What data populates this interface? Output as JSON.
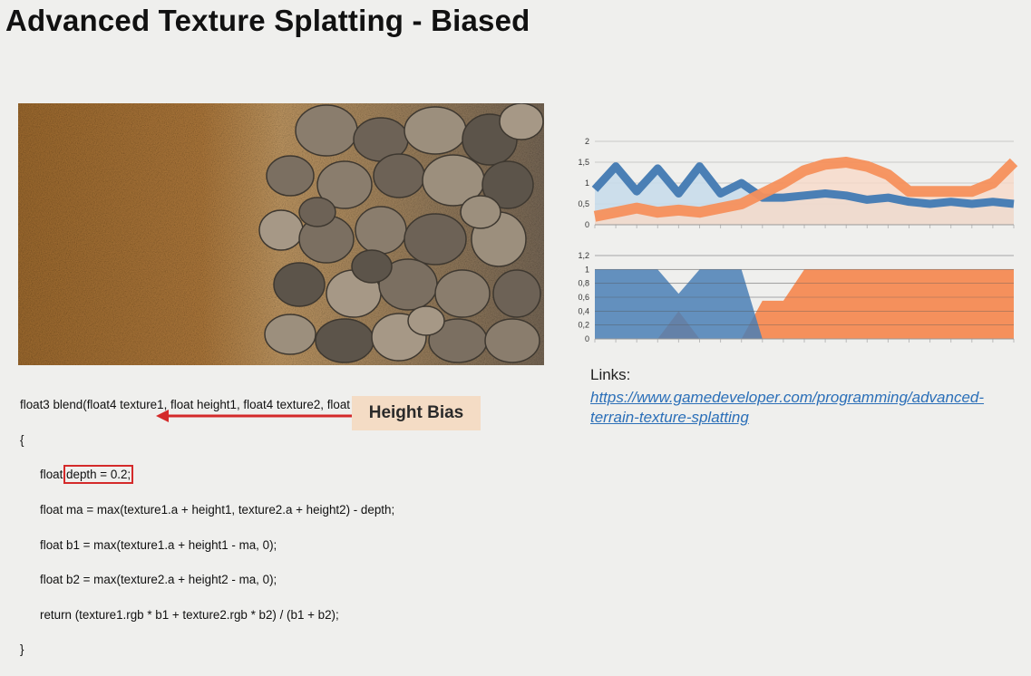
{
  "slide": {
    "title": "Advanced Texture Splatting - Biased",
    "annotation": "Height Bias",
    "links_label": "Links:",
    "link_text": "https://www.gamedeveloper.com/programming/advanced-terrain-texture-splatting"
  },
  "code_lines": [
    "float3 blend(float4 texture1, float height1, float4 texture2, float height2)",
    "{",
    "float",
    "depth = 0.2;",
    "float ma = max(texture1.a + height1, texture2.a + height2) - depth;",
    "float b1 = max(texture1.a + height1 - ma, 0);",
    "float b2 = max(texture2.a + height2 - ma, 0);",
    "return (texture1.rgb * b1 + texture2.rgb * b2) / (b1 + b2);",
    "}"
  ],
  "colors": {
    "blue": "#4a7fb5",
    "orange": "#f5905c",
    "light_blue": "#c8dcea",
    "light_orange": "#f8d9c8",
    "red_box": "#d42a2a",
    "link": "#2b6fb8"
  },
  "chart_data": [
    {
      "type": "area",
      "ylim": [
        0,
        2
      ],
      "yticks": [
        "0",
        "0,5",
        "1",
        "1,5",
        "2"
      ],
      "x": [
        0,
        1,
        2,
        3,
        4,
        5,
        6,
        7,
        8,
        9,
        10,
        11,
        12,
        13,
        14,
        15,
        16,
        17,
        18,
        19,
        20
      ],
      "series": [
        {
          "values": [
            0.85,
            1.4,
            0.8,
            1.35,
            0.75,
            1.4,
            0.75,
            1.0,
            0.65,
            0.65,
            0.7,
            0.75,
            0.7,
            0.6,
            0.65,
            0.55,
            0.5,
            0.55,
            0.5,
            0.55,
            0.5
          ]
        },
        {
          "values": [
            0.2,
            0.3,
            0.4,
            0.3,
            0.35,
            0.3,
            0.4,
            0.5,
            0.75,
            1.0,
            1.3,
            1.45,
            1.5,
            1.4,
            1.2,
            0.8,
            0.8,
            0.8,
            0.8,
            1.0,
            1.5
          ]
        }
      ]
    },
    {
      "type": "area",
      "ylim": [
        0,
        1.2
      ],
      "yticks": [
        "0",
        "0,2",
        "0,4",
        "0,6",
        "0,8",
        "1",
        "1,2"
      ],
      "x": [
        0,
        1,
        2,
        3,
        4,
        5,
        6,
        7,
        8,
        9,
        10,
        11,
        12,
        13,
        14,
        15,
        16,
        17,
        18,
        19,
        20
      ],
      "series": [
        {
          "values": [
            1,
            1,
            1,
            1,
            0.65,
            1,
            1,
            1,
            0,
            0,
            0,
            0,
            0,
            0,
            0,
            0,
            0,
            0,
            0,
            0,
            0
          ]
        },
        {
          "values": [
            0,
            0,
            0,
            0,
            0.4,
            0,
            0,
            0,
            0.55,
            0.55,
            1,
            1,
            1,
            1,
            1,
            1,
            1,
            1,
            1,
            1,
            1
          ]
        }
      ]
    }
  ]
}
